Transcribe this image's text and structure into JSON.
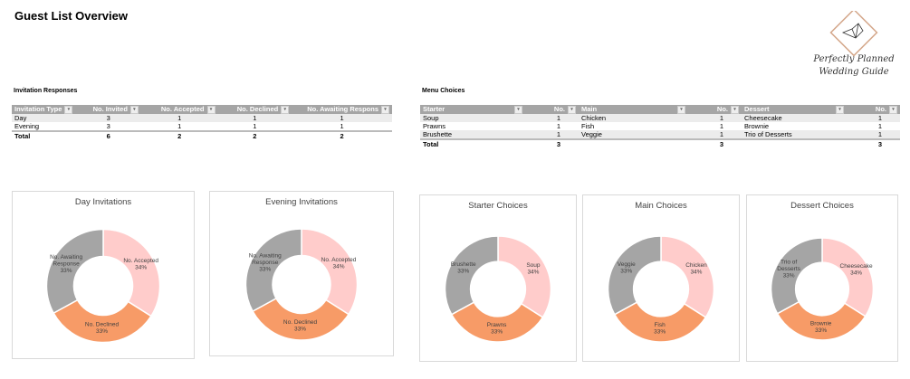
{
  "title": "Guest List Overview",
  "logo_text": "Perfectly Planned Wedding Guide",
  "invitations": {
    "title": "Invitation Responses",
    "headers": [
      "Invitation Type",
      "No. Invited",
      "No. Accepted",
      "No. Declined",
      "No. Awaiting Respons"
    ],
    "rows": [
      [
        "Day",
        "3",
        "1",
        "1",
        "1"
      ],
      [
        "Evening",
        "3",
        "1",
        "1",
        "1"
      ]
    ],
    "total": [
      "Total",
      "6",
      "2",
      "2",
      "2"
    ]
  },
  "menu": {
    "title": "Menu Choices",
    "headers": [
      "Starter",
      "No.",
      "Main",
      "No.",
      "Dessert",
      "No."
    ],
    "rows": [
      [
        "Soup",
        "1",
        "Chicken",
        "1",
        "Cheesecake",
        "1"
      ],
      [
        "Prawns",
        "1",
        "Fish",
        "1",
        "Brownie",
        "1"
      ],
      [
        "Brushette",
        "1",
        "Veggie",
        "1",
        "Trio of Desserts",
        "1"
      ]
    ],
    "total": [
      "Total",
      "3",
      "",
      "3",
      "",
      "3"
    ]
  },
  "colors": [
    "#ffcccb",
    "#f79b67",
    "#a5a5a5"
  ],
  "chart_data": [
    {
      "type": "pie",
      "title": "Day Invitations",
      "labels": [
        "No. Accepted",
        "No. Declined",
        "No. Awaiting Response"
      ],
      "values": [
        1,
        1,
        1
      ],
      "percents": [
        "34%",
        "33%",
        "33%"
      ]
    },
    {
      "type": "pie",
      "title": "Evening Invitations",
      "labels": [
        "No. Accepted",
        "No. Declined",
        "No. Awaiting Response"
      ],
      "values": [
        1,
        1,
        1
      ],
      "percents": [
        "34%",
        "33%",
        "33%"
      ]
    },
    {
      "type": "pie",
      "title": "Starter Choices",
      "labels": [
        "Soup",
        "Prawns",
        "Brushette"
      ],
      "values": [
        1,
        1,
        1
      ],
      "percents": [
        "34%",
        "33%",
        "33%"
      ]
    },
    {
      "type": "pie",
      "title": "Main Choices",
      "labels": [
        "Chicken",
        "Fish",
        "Veggie"
      ],
      "values": [
        1,
        1,
        1
      ],
      "percents": [
        "34%",
        "33%",
        "33%"
      ]
    },
    {
      "type": "pie",
      "title": "Dessert Choices",
      "labels": [
        "Cheesecake",
        "Brownie",
        "Trio of Desserts"
      ],
      "values": [
        1,
        1,
        1
      ],
      "percents": [
        "34%",
        "33%",
        "33%"
      ]
    }
  ]
}
